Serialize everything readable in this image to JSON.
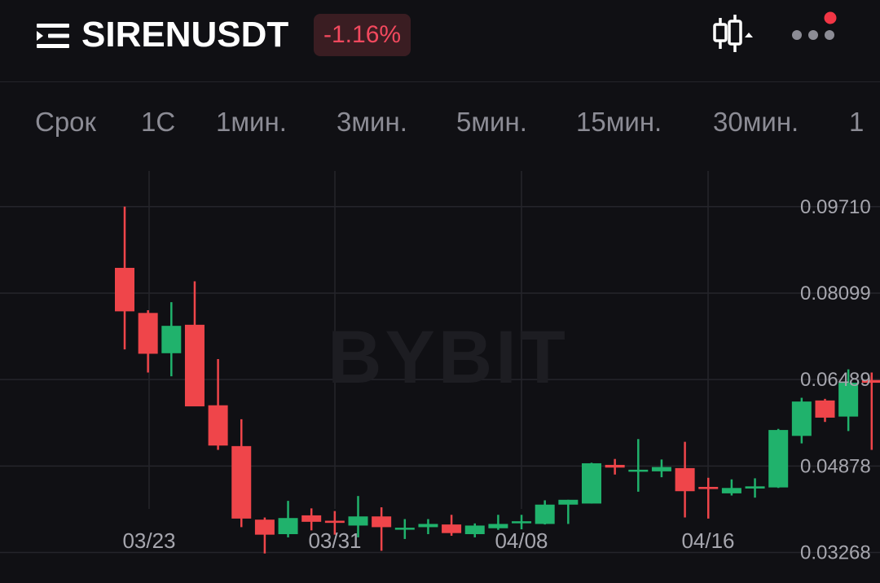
{
  "header": {
    "symbol": "SIRENUSDT",
    "change": "-1.16%",
    "icons": [
      "menu-icon",
      "candlestick-chart-icon",
      "more-icon"
    ],
    "notification_dot_color": "#f23645"
  },
  "timeframes": [
    "Срок",
    "1С",
    "1мин.",
    "3мин.",
    "5мин.",
    "15мин.",
    "30мин.",
    "1"
  ],
  "watermark": "BYBIT",
  "colors": {
    "up": "#20b26c",
    "down": "#ef454a",
    "background": "#101014",
    "grid": "#25252b",
    "axis_text": "#a6a6ae"
  },
  "chart_data": {
    "type": "candlestick",
    "y_axis_ticks": [
      "0.09710",
      "0.08099",
      "0.06489",
      "0.04878",
      "0.03268"
    ],
    "x_axis_ticks": [
      "03/23",
      "03/31",
      "04/08",
      "04/16"
    ],
    "ylim": [
      0.027,
      0.1045
    ],
    "candles": [
      {
        "o": 0.0857,
        "h": 0.0971,
        "l": 0.0705,
        "c": 0.0776
      },
      {
        "o": 0.0773,
        "h": 0.0778,
        "l": 0.0662,
        "c": 0.0697
      },
      {
        "o": 0.0698,
        "h": 0.0793,
        "l": 0.0655,
        "c": 0.0749
      },
      {
        "o": 0.0751,
        "h": 0.0832,
        "l": 0.0602,
        "c": 0.0599
      },
      {
        "o": 0.0601,
        "h": 0.0687,
        "l": 0.0518,
        "c": 0.0526
      },
      {
        "o": 0.0525,
        "h": 0.0575,
        "l": 0.0374,
        "c": 0.039
      },
      {
        "o": 0.0388,
        "h": 0.0392,
        "l": 0.0325,
        "c": 0.036
      },
      {
        "o": 0.0361,
        "h": 0.0423,
        "l": 0.0355,
        "c": 0.0391
      },
      {
        "o": 0.0396,
        "h": 0.0409,
        "l": 0.0368,
        "c": 0.0384
      },
      {
        "o": 0.0386,
        "h": 0.0404,
        "l": 0.036,
        "c": 0.0382
      },
      {
        "o": 0.0377,
        "h": 0.0432,
        "l": 0.0355,
        "c": 0.0394
      },
      {
        "o": 0.0394,
        "h": 0.0411,
        "l": 0.033,
        "c": 0.0374
      },
      {
        "o": 0.037,
        "h": 0.0389,
        "l": 0.0352,
        "c": 0.0373
      },
      {
        "o": 0.0374,
        "h": 0.0389,
        "l": 0.0361,
        "c": 0.038
      },
      {
        "o": 0.0379,
        "h": 0.0397,
        "l": 0.0358,
        "c": 0.0363
      },
      {
        "o": 0.0361,
        "h": 0.0381,
        "l": 0.0355,
        "c": 0.0377
      },
      {
        "o": 0.0372,
        "h": 0.0397,
        "l": 0.0369,
        "c": 0.038
      },
      {
        "o": 0.0384,
        "h": 0.0397,
        "l": 0.037,
        "c": 0.0385
      },
      {
        "o": 0.038,
        "h": 0.0424,
        "l": 0.0379,
        "c": 0.0416
      },
      {
        "o": 0.0416,
        "h": 0.0425,
        "l": 0.038,
        "c": 0.0425
      },
      {
        "o": 0.0418,
        "h": 0.0494,
        "l": 0.0418,
        "c": 0.0493
      },
      {
        "o": 0.049,
        "h": 0.0501,
        "l": 0.0472,
        "c": 0.0485
      },
      {
        "o": 0.0481,
        "h": 0.0538,
        "l": 0.044,
        "c": 0.0481
      },
      {
        "o": 0.0478,
        "h": 0.05,
        "l": 0.0467,
        "c": 0.0486
      },
      {
        "o": 0.0484,
        "h": 0.0533,
        "l": 0.0392,
        "c": 0.0441
      },
      {
        "o": 0.0449,
        "h": 0.0466,
        "l": 0.039,
        "c": 0.0445
      },
      {
        "o": 0.0437,
        "h": 0.0463,
        "l": 0.0433,
        "c": 0.0447
      },
      {
        "o": 0.0446,
        "h": 0.0465,
        "l": 0.0429,
        "c": 0.045
      },
      {
        "o": 0.0448,
        "h": 0.0557,
        "l": 0.0447,
        "c": 0.0555
      },
      {
        "o": 0.0544,
        "h": 0.0615,
        "l": 0.053,
        "c": 0.0608
      },
      {
        "o": 0.061,
        "h": 0.0613,
        "l": 0.057,
        "c": 0.0578
      },
      {
        "o": 0.058,
        "h": 0.0668,
        "l": 0.0553,
        "c": 0.0643
      },
      {
        "o": 0.0648,
        "h": 0.0662,
        "l": 0.0518,
        "c": 0.0643
      }
    ]
  }
}
